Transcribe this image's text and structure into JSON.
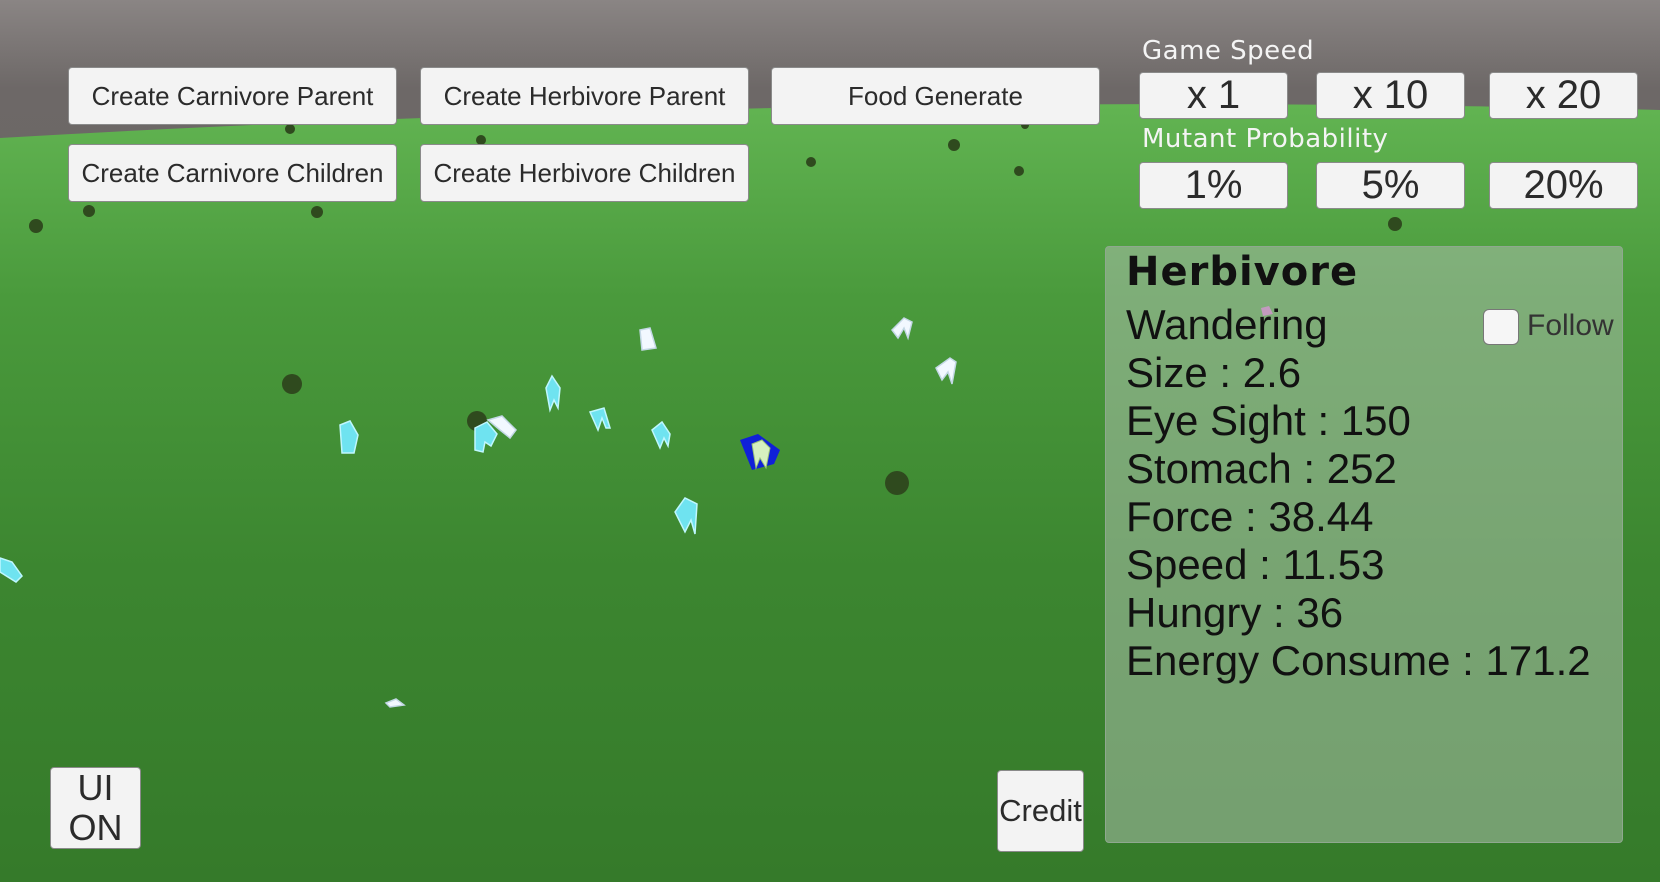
{
  "top_buttons": {
    "create_carnivore_parent": "Create Carnivore Parent",
    "create_herbivore_parent": "Create Herbivore Parent",
    "food_generate": "Food Generate",
    "create_carnivore_children": "Create Carnivore Children",
    "create_herbivore_children": "Create Herbivore Children"
  },
  "game_speed": {
    "label": "Game Speed",
    "options": [
      "x 1",
      "x 10",
      "x 20"
    ]
  },
  "mutant_probability": {
    "label": "Mutant Probability",
    "options": [
      "1%",
      "5%",
      "20%"
    ]
  },
  "info_panel": {
    "title": "Herbivore",
    "state": "Wandering",
    "follow_label": "Follow",
    "follow_checked": false,
    "stats": [
      "Size : 2.6",
      "Eye Sight : 150",
      "Stomach : 252",
      "Force : 38.44",
      "Speed : 11.53",
      "Hungry : 36",
      "Energy Consume : 171.2"
    ]
  },
  "bottom_buttons": {
    "ui_toggle_line1": "UI",
    "ui_toggle_line2": "ON",
    "credit": "Credit"
  },
  "colors": {
    "ground": "#3a7f2e",
    "sky": "#6d6867",
    "herbivore": "#6fe3f0",
    "selected_creature": "#1020d8",
    "tree": "#2f4a1e"
  },
  "icons": {
    "tree": "tree-icon",
    "herbivore": "herbivore-creature-icon",
    "carnivore": "carnivore-creature-icon"
  }
}
